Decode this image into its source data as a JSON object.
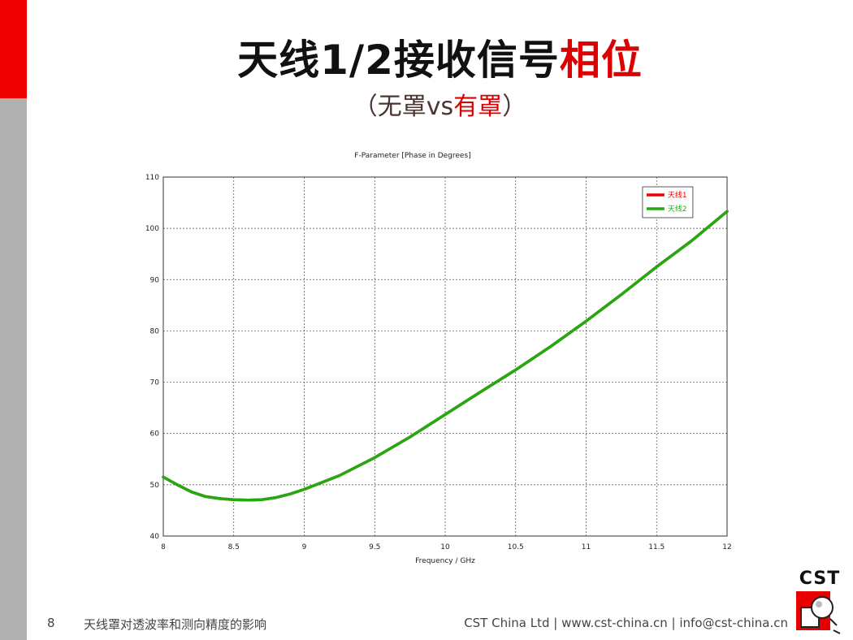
{
  "slide": {
    "title_main": "天线1/2接收信号",
    "title_accent": "相位",
    "subtitle_open": "（无罩vs",
    "subtitle_accent": "有罩",
    "subtitle_close": "）",
    "page_number": "8",
    "footer_left": "天线罩对透波率和测向精度的影响",
    "footer_right": "CST China Ltd | www.cst-china.cn | info@cst-china.cn",
    "logo_text": "CST"
  },
  "colors": {
    "sidebar_red": "#ee0000",
    "sidebar_gray": "#b0b0b0",
    "title_accent": "#dd0000",
    "series1": "#ee0000",
    "series2": "#22aa11"
  },
  "chart_data": {
    "type": "line",
    "title": "F-Parameter [Phase in Degrees]",
    "xlabel": "Frequency / GHz",
    "ylabel": "",
    "xlim": [
      8,
      12
    ],
    "ylim": [
      40,
      110
    ],
    "xticks": [
      8,
      8.5,
      9,
      9.5,
      10,
      10.5,
      11,
      11.5,
      12
    ],
    "yticks": [
      40,
      50,
      60,
      70,
      80,
      90,
      100,
      110
    ],
    "grid": true,
    "legend_position": "top-right",
    "series": [
      {
        "name": "天线1",
        "color": "#ee0000",
        "x": [
          8,
          8.1,
          8.2,
          8.3,
          8.4,
          8.5,
          8.6,
          8.7,
          8.8,
          8.9,
          9,
          9.25,
          9.5,
          9.75,
          10,
          10.25,
          10.5,
          10.75,
          11,
          11.25,
          11.5,
          11.75,
          12
        ],
        "y": [
          51.5,
          50.0,
          48.6,
          47.7,
          47.3,
          47.1,
          47.0,
          47.1,
          47.5,
          48.2,
          49.1,
          51.8,
          55.3,
          59.3,
          63.7,
          68.1,
          72.4,
          77.0,
          81.9,
          87.1,
          92.5,
          97.6,
          103.3
        ]
      },
      {
        "name": "天线2",
        "color": "#22aa11",
        "x": [
          8,
          8.1,
          8.2,
          8.3,
          8.4,
          8.5,
          8.6,
          8.7,
          8.8,
          8.9,
          9,
          9.25,
          9.5,
          9.75,
          10,
          10.25,
          10.5,
          10.75,
          11,
          11.25,
          11.5,
          11.75,
          12
        ],
        "y": [
          51.5,
          50.0,
          48.6,
          47.7,
          47.3,
          47.1,
          47.0,
          47.1,
          47.5,
          48.2,
          49.1,
          51.8,
          55.3,
          59.3,
          63.7,
          68.1,
          72.4,
          77.0,
          81.9,
          87.1,
          92.5,
          97.6,
          103.3
        ]
      }
    ]
  }
}
